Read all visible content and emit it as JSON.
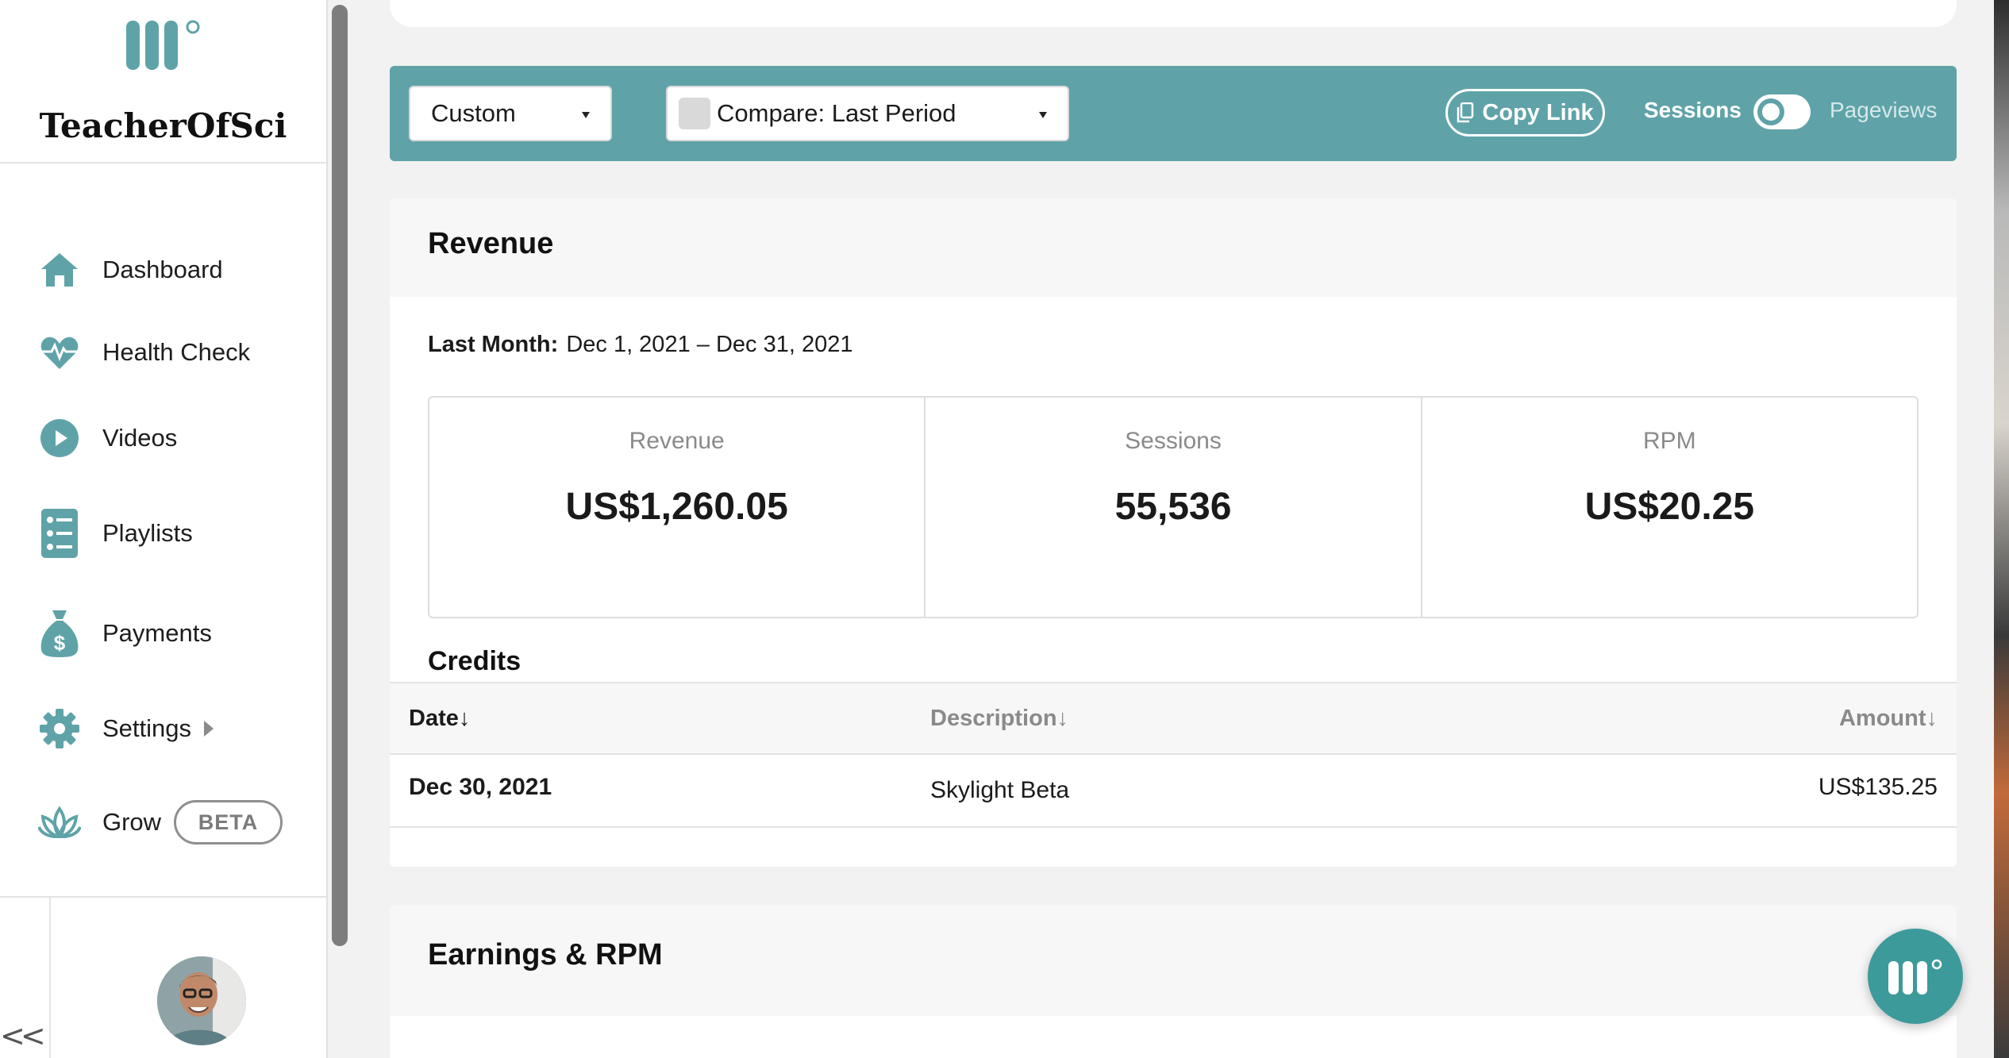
{
  "app": {
    "brand_name": "TeacherOfSci",
    "accent_color": "#5fa3a8"
  },
  "sidebar": {
    "items": [
      {
        "label": "Dashboard",
        "icon": "home-icon"
      },
      {
        "label": "Health Check",
        "icon": "heartbeat-icon"
      },
      {
        "label": "Videos",
        "icon": "play-circle-icon"
      },
      {
        "label": "Playlists",
        "icon": "list-icon"
      },
      {
        "label": "Payments",
        "icon": "money-bag-icon"
      },
      {
        "label": "Settings",
        "icon": "gear-icon"
      },
      {
        "label": "Grow",
        "icon": "lotus-icon",
        "badge": "BETA"
      }
    ],
    "collapse_label": "<<"
  },
  "filters": {
    "date_range": "Custom",
    "compare": "Compare: Last Period",
    "copy_link": "Copy Link",
    "toggle_left": "Sessions",
    "toggle_right": "Pageviews"
  },
  "revenue": {
    "title": "Revenue",
    "period_label": "Last Month:",
    "period_range": "Dec 1, 2021 – Dec 31, 2021",
    "stats": [
      {
        "label": "Revenue",
        "value": "US$1,260.05"
      },
      {
        "label": "Sessions",
        "value": "55,536"
      },
      {
        "label": "RPM",
        "value": "US$20.25"
      }
    ],
    "credits": {
      "title": "Credits",
      "columns": [
        "Date↓",
        "Description↓",
        "Amount↓"
      ],
      "rows": [
        {
          "date": "Dec 30, 2021",
          "description": "Skylight Beta",
          "amount": "US$135.25"
        }
      ]
    }
  },
  "earnings": {
    "title": "Earnings & RPM"
  }
}
